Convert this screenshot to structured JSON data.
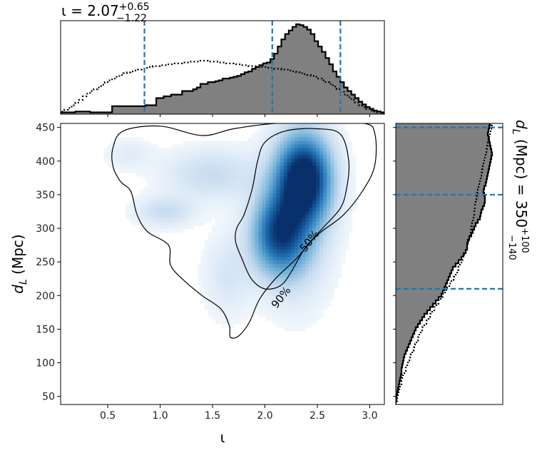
{
  "chart_data": [
    {
      "type": "heatmap",
      "name": "joint posterior density",
      "xlabel": "ι",
      "ylabel_main": "d",
      "ylabel_sub": "L",
      "ylabel_unit": " (Mpc)",
      "xlim": [
        0.05,
        3.14
      ],
      "ylim": [
        38,
        456
      ],
      "xticks": [
        "0.5",
        "1.0",
        "1.5",
        "2.0",
        "2.5",
        "3.0"
      ],
      "xtick_values": [
        0.5,
        1.0,
        1.5,
        2.0,
        2.5,
        3.0
      ],
      "yticks": [
        "50",
        "100",
        "150",
        "200",
        "250",
        "300",
        "350",
        "400",
        "450"
      ],
      "ytick_values": [
        50,
        100,
        150,
        200,
        250,
        300,
        350,
        400,
        450
      ],
      "colormap": [
        "#f7fbff",
        "#c6dbef",
        "#6baed6",
        "#2171b5",
        "#08306b"
      ],
      "blobs": [
        {
          "x": 2.38,
          "y": 375,
          "sx": 0.17,
          "sy": 42,
          "w": 1.0
        },
        {
          "x": 2.12,
          "y": 290,
          "sx": 0.17,
          "sy": 40,
          "w": 0.72
        },
        {
          "x": 2.3,
          "y": 320,
          "sx": 0.2,
          "sy": 70,
          "w": 0.4
        },
        {
          "x": 1.5,
          "y": 380,
          "sx": 0.3,
          "sy": 25,
          "w": 0.18
        },
        {
          "x": 1.05,
          "y": 325,
          "sx": 0.18,
          "sy": 15,
          "w": 0.18
        },
        {
          "x": 1.65,
          "y": 230,
          "sx": 0.15,
          "sy": 40,
          "w": 0.12
        },
        {
          "x": 0.7,
          "y": 410,
          "sx": 0.15,
          "sy": 15,
          "w": 0.08
        }
      ],
      "contour_labels": [
        "50%",
        "90%"
      ],
      "contour_50": [
        [
          2.0,
          428
        ],
        [
          2.2,
          445
        ],
        [
          2.5,
          448
        ],
        [
          2.72,
          440
        ],
        [
          2.8,
          400
        ],
        [
          2.78,
          360
        ],
        [
          2.72,
          330
        ],
        [
          2.55,
          300
        ],
        [
          2.38,
          270
        ],
        [
          2.25,
          235
        ],
        [
          2.15,
          215
        ],
        [
          2.0,
          210
        ],
        [
          1.87,
          225
        ],
        [
          1.78,
          255
        ],
        [
          1.72,
          280
        ],
        [
          1.73,
          300
        ],
        [
          1.8,
          320
        ],
        [
          1.88,
          360
        ],
        [
          1.93,
          400
        ]
      ],
      "contour_90": [
        [
          0.55,
          420
        ],
        [
          0.65,
          445
        ],
        [
          1.0,
          452
        ],
        [
          1.4,
          438
        ],
        [
          1.7,
          448
        ],
        [
          2.1,
          456
        ],
        [
          2.5,
          456
        ],
        [
          2.95,
          456
        ],
        [
          3.05,
          440
        ],
        [
          3.05,
          395
        ],
        [
          2.95,
          360
        ],
        [
          2.75,
          320
        ],
        [
          2.5,
          290
        ],
        [
          2.3,
          255
        ],
        [
          2.1,
          225
        ],
        [
          1.95,
          195
        ],
        [
          1.85,
          160
        ],
        [
          1.75,
          140
        ],
        [
          1.67,
          138
        ],
        [
          1.66,
          155
        ],
        [
          1.58,
          180
        ],
        [
          1.4,
          200
        ],
        [
          1.23,
          222
        ],
        [
          1.1,
          245
        ],
        [
          1.08,
          275
        ],
        [
          0.88,
          295
        ],
        [
          0.78,
          320
        ],
        [
          0.72,
          355
        ],
        [
          0.62,
          370
        ],
        [
          0.55,
          392
        ]
      ]
    },
    {
      "type": "histogram",
      "name": "marginal of iota",
      "title_base": "ι = 2.07",
      "title_sup": "+0.65",
      "title_sub": "−1.22",
      "median": 2.07,
      "interval": [
        0.85,
        2.72
      ],
      "posterior_heights": [
        2,
        2,
        2,
        2,
        3,
        3,
        3,
        3,
        2,
        2,
        2,
        2,
        2,
        2,
        9,
        9,
        9,
        9,
        9,
        9,
        9,
        9,
        9,
        10,
        10,
        10,
        18,
        18,
        20,
        20,
        22,
        22,
        22,
        26,
        26,
        26,
        28,
        30,
        34,
        34,
        36,
        36,
        37,
        38,
        40,
        40,
        41,
        42,
        43,
        45,
        47,
        48,
        51,
        53,
        55,
        57,
        58,
        62,
        68,
        76,
        84,
        90,
        94,
        98,
        101,
        100,
        98,
        95,
        90,
        82,
        76,
        70,
        63,
        56,
        48,
        42,
        36,
        30,
        26,
        22,
        18,
        14,
        11,
        8,
        6,
        4,
        3,
        2
      ],
      "prior_heights": [
        3,
        5,
        7,
        10,
        13,
        16,
        20,
        23,
        26,
        28,
        30,
        33,
        36,
        38,
        40,
        42,
        44,
        46,
        47,
        48,
        49,
        50,
        51,
        52,
        53,
        54,
        54,
        55,
        55,
        56,
        56,
        57,
        57,
        58,
        58,
        59,
        59,
        59,
        60,
        60,
        59,
        59,
        59,
        58,
        58,
        57,
        57,
        56,
        56,
        55,
        55,
        54,
        54,
        54,
        53,
        53,
        52,
        52,
        51,
        51,
        50,
        50,
        49,
        48,
        47,
        46,
        45,
        44,
        43,
        42,
        40,
        38,
        36,
        34,
        31,
        28,
        25,
        22,
        19,
        16,
        13,
        10,
        8,
        6,
        4,
        3,
        2,
        1
      ]
    },
    {
      "type": "histogram",
      "name": "marginal of luminosity distance",
      "title_main": "d",
      "title_sub": "L",
      "title_rest": " (Mpc) = 350",
      "title_sup2": "+100",
      "title_sub2": "−140",
      "median": 350,
      "interval": [
        210,
        450
      ],
      "bin_edges_start": 38,
      "bin_width": 5,
      "posterior_widths": [
        0,
        1,
        1,
        2,
        3,
        4,
        5,
        6,
        7,
        8,
        8,
        9,
        10,
        11,
        12,
        14,
        16,
        18,
        20,
        22,
        24,
        26,
        28,
        31,
        34,
        37,
        40,
        44,
        48,
        52,
        56,
        60,
        64,
        66,
        68,
        70,
        72,
        74,
        76,
        78,
        80,
        84,
        88,
        92,
        95,
        98,
        100,
        100,
        101,
        103,
        106,
        108,
        110,
        112,
        115,
        118,
        119,
        120,
        122,
        124,
        125,
        125,
        124,
        123,
        124,
        126,
        127,
        128,
        129,
        130,
        131,
        132,
        133,
        134,
        135,
        134,
        133,
        132,
        131,
        130,
        129,
        130,
        131,
        132,
        133
      ],
      "prior_widths": [
        0,
        2,
        3,
        4,
        5,
        6,
        8,
        9,
        10,
        12,
        14,
        16,
        17,
        19,
        21,
        23,
        25,
        27,
        29,
        31,
        33,
        35,
        37,
        40,
        43,
        46,
        48,
        51,
        54,
        57,
        60,
        63,
        66,
        69,
        72,
        75,
        78,
        81,
        84,
        86,
        88,
        90,
        92,
        94,
        96,
        98,
        100,
        101,
        102,
        103,
        104,
        105,
        106,
        107,
        108,
        109,
        110,
        110,
        111,
        111,
        112,
        113,
        114,
        115,
        116,
        117,
        118,
        119,
        120,
        121,
        122,
        123,
        124,
        125,
        126,
        127,
        128,
        129,
        130,
        131,
        132,
        133,
        134,
        135,
        136
      ]
    }
  ],
  "colors": {
    "fill": "#808080",
    "edge": "#000000",
    "interval_line": "#1f77b4"
  }
}
